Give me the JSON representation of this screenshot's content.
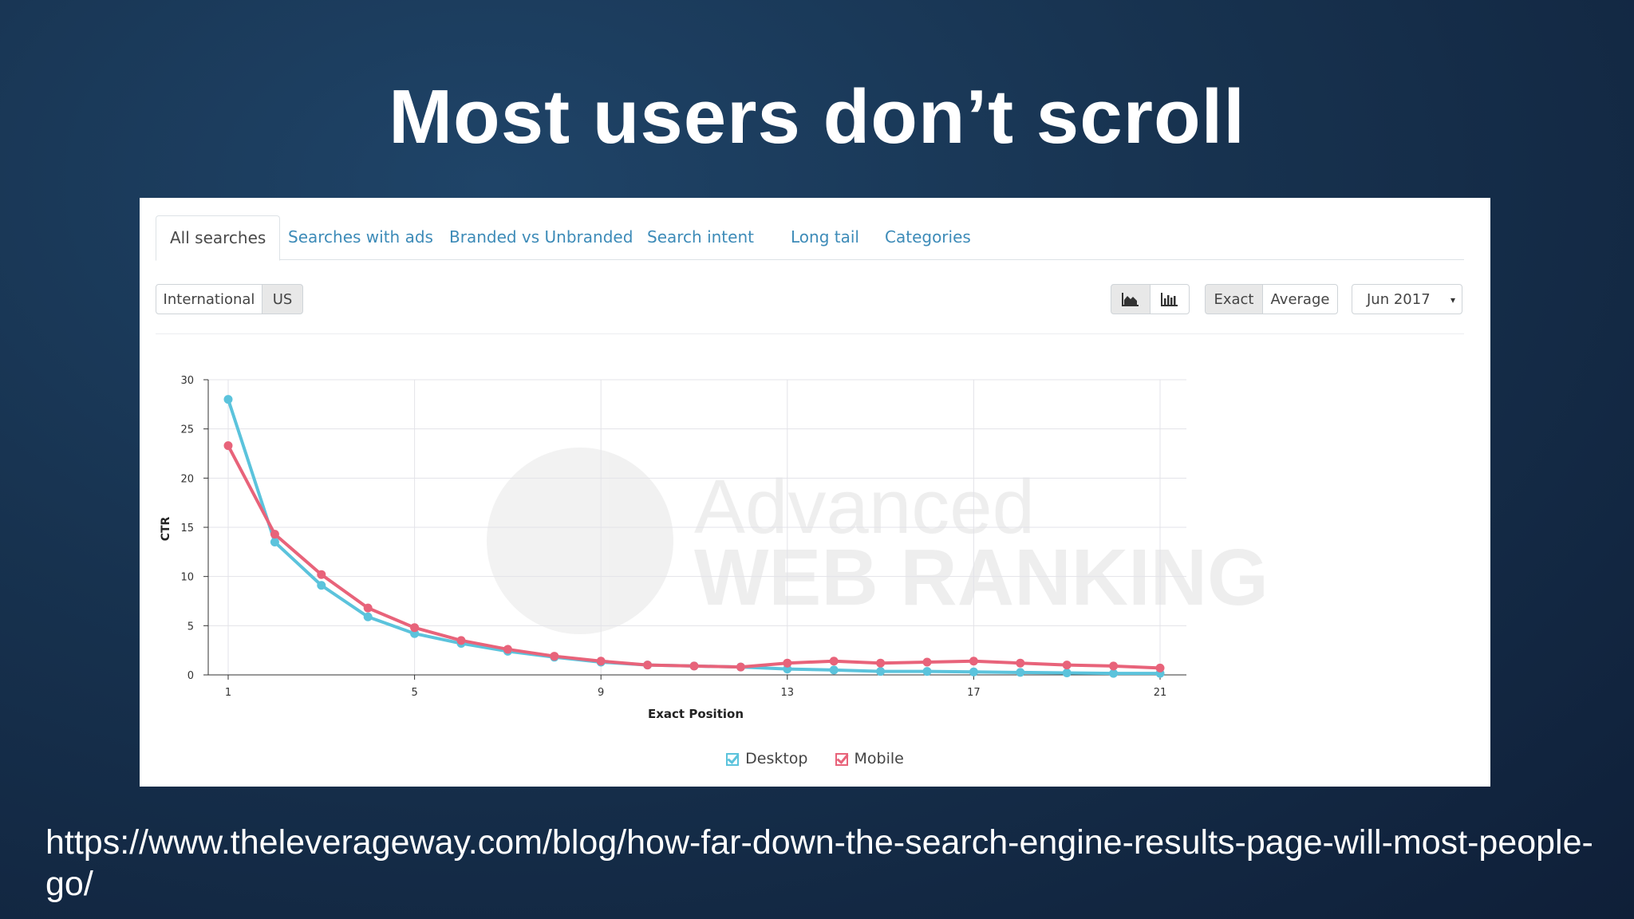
{
  "slide": {
    "title": "Most users don’t scroll",
    "url": "https://www.theleverageway.com/blog/how-far-down-the-search-engine-results-page-will-most-people-go/"
  },
  "tabs": [
    {
      "label": "All searches",
      "active": true
    },
    {
      "label": "Searches with ads"
    },
    {
      "label": "Branded vs Unbranded"
    },
    {
      "label": "Search intent"
    },
    {
      "label": "Long tail"
    },
    {
      "label": "Categories"
    }
  ],
  "toolbar": {
    "region_international": "International",
    "region_us": "US",
    "area_chart_icon": "area-chart-icon",
    "bar_chart_icon": "bar-chart-icon",
    "exact_label": "Exact",
    "average_label": "Average",
    "date_value": "Jun 2017",
    "date_caret": "▾"
  },
  "colors": {
    "desktop": "#5bc3dc",
    "mobile": "#e8637a"
  },
  "watermark": {
    "line1": "Advanced",
    "line2": "WEB RANKING"
  },
  "chart_data": {
    "type": "line",
    "title": "",
    "xlabel": "Exact Position",
    "ylabel": "CTR",
    "xlim": [
      1,
      21
    ],
    "ylim": [
      0,
      30
    ],
    "xticks": [
      1,
      5,
      9,
      13,
      17,
      21
    ],
    "yticks": [
      0,
      5,
      10,
      15,
      20,
      25,
      30
    ],
    "grid": true,
    "legend_position": "bottom-center",
    "x": [
      1,
      2,
      3,
      4,
      5,
      6,
      7,
      8,
      9,
      10,
      11,
      12,
      13,
      14,
      15,
      16,
      17,
      18,
      19,
      20,
      21
    ],
    "series": [
      {
        "name": "Desktop",
        "values": [
          28.0,
          13.5,
          9.1,
          5.9,
          4.2,
          3.2,
          2.4,
          1.8,
          1.3,
          1.0,
          0.9,
          0.8,
          0.6,
          0.5,
          0.35,
          0.35,
          0.3,
          0.25,
          0.2,
          0.15,
          0.15
        ]
      },
      {
        "name": "Mobile",
        "values": [
          23.3,
          14.3,
          10.2,
          6.8,
          4.8,
          3.5,
          2.6,
          1.9,
          1.4,
          1.0,
          0.9,
          0.8,
          1.2,
          1.4,
          1.2,
          1.3,
          1.4,
          1.2,
          1.0,
          0.9,
          0.7
        ]
      }
    ]
  }
}
